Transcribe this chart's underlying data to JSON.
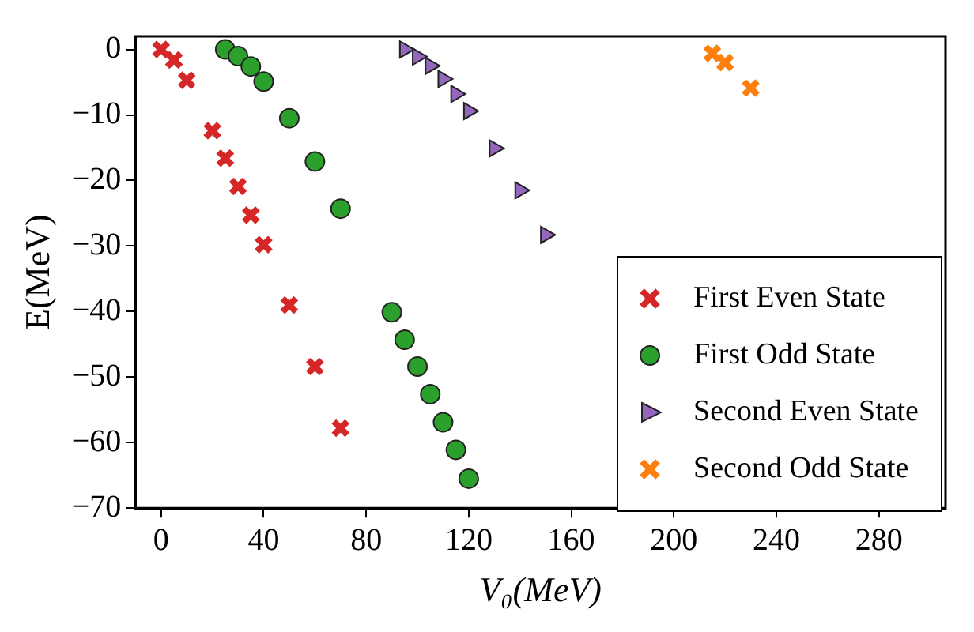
{
  "chart_data": {
    "type": "scatter",
    "xlabel": "V₀(MeV)",
    "ylabel": "E(MeV)",
    "xlim": [
      -10,
      306
    ],
    "ylim": [
      -70,
      2
    ],
    "xticks": [
      0,
      40,
      80,
      120,
      160,
      200,
      240,
      280
    ],
    "yticks": [
      0,
      -10,
      -20,
      -30,
      -40,
      -50,
      -60,
      -70
    ],
    "grid": false,
    "legend": "bottom right",
    "series": [
      {
        "name": "First Even State",
        "color": "#d62728",
        "marker": "cross",
        "x": [
          0,
          5,
          10,
          20,
          25,
          30,
          35,
          40,
          50,
          60,
          70
        ],
        "values": [
          0,
          -1.6,
          -4.7,
          -12.4,
          -16.6,
          -20.9,
          -25.3,
          -29.8,
          -39,
          -48.4,
          -57.8
        ]
      },
      {
        "name": "First Odd State",
        "color": "#2ca02c",
        "marker": "circle",
        "x": [
          25,
          30,
          35,
          40,
          50,
          60,
          70,
          90,
          95,
          100,
          105,
          110,
          115,
          120
        ],
        "values": [
          0,
          -1,
          -2.6,
          -4.9,
          -10.5,
          -17.1,
          -24.3,
          -40.1,
          -44.3,
          -48.4,
          -52.6,
          -56.9,
          -61.1,
          -65.5
        ]
      },
      {
        "name": "Second Even State",
        "color": "#9467bd",
        "marker": "triangle",
        "x": [
          95,
          100,
          105,
          110,
          115,
          120,
          130,
          140,
          150
        ],
        "values": [
          0,
          -1.1,
          -2.5,
          -4.5,
          -6.8,
          -9.4,
          -15.1,
          -21.5,
          -28.3
        ]
      },
      {
        "name": "Second Odd State",
        "color": "#ff7f0e",
        "marker": "cross",
        "x": [
          215,
          220,
          230
        ],
        "values": [
          -0.6,
          -2,
          -5.9
        ]
      }
    ]
  }
}
